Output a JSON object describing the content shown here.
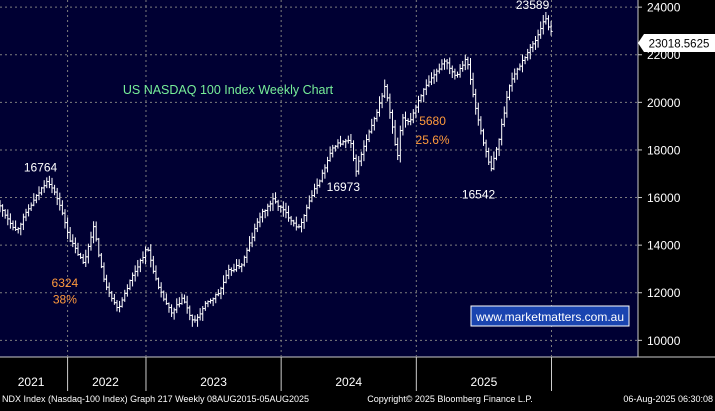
{
  "chart_data": {
    "type": "bar",
    "subtype": "ohlc-weekly",
    "title": "US NASDAQ 100 Index Weekly Chart",
    "watermark": "www.marketmatters.com.au",
    "footer": {
      "left": "NDX Index (Nasdaq-100 Index) Graph 217  Weekly 08AUG2015-05AUG2025",
      "center": "Copyright© 2025 Bloomberg Finance L.P.",
      "right": "06-Aug-2025 06:30:08"
    },
    "last_price": "23018.5625",
    "ylim": [
      9300,
      24300
    ],
    "grid": true,
    "y_ticks": [
      10000,
      12000,
      14000,
      16000,
      18000,
      20000,
      22000,
      24000
    ],
    "y_tick_labels": [
      "10000",
      "12000",
      "14000",
      "16000",
      "18000",
      "20000",
      "22000",
      "24000"
    ],
    "x_range": [
      2020.92,
      2025.64
    ],
    "year_dividers": [
      2021.42,
      2022.0,
      2023.0,
      2024.0,
      2025.0
    ],
    "year_labels": [
      {
        "label": "2021",
        "x": 2021.15
      },
      {
        "label": "2022",
        "x": 2021.7
      },
      {
        "label": "2023",
        "x": 2022.5
      },
      {
        "label": "2024",
        "x": 2023.5
      },
      {
        "label": "2025",
        "x": 2024.5
      }
    ],
    "anchor_points": [
      [
        2020.92,
        15700
      ],
      [
        2021.05,
        14600
      ],
      [
        2021.15,
        15600
      ],
      [
        2021.28,
        16764
      ],
      [
        2021.36,
        15900
      ],
      [
        2021.45,
        14200
      ],
      [
        2021.55,
        13200
      ],
      [
        2021.62,
        14800
      ],
      [
        2021.7,
        12500
      ],
      [
        2021.8,
        11300
      ],
      [
        2021.9,
        12600
      ],
      [
        2022.02,
        13900
      ],
      [
        2022.1,
        12200
      ],
      [
        2022.2,
        11100
      ],
      [
        2022.28,
        11800
      ],
      [
        2022.36,
        10700
      ],
      [
        2022.45,
        11500
      ],
      [
        2022.55,
        12000
      ],
      [
        2022.62,
        12900
      ],
      [
        2022.72,
        13200
      ],
      [
        2022.85,
        15200
      ],
      [
        2022.95,
        15900
      ],
      [
        2023.05,
        15300
      ],
      [
        2023.14,
        14700
      ],
      [
        2023.22,
        15900
      ],
      [
        2023.3,
        16800
      ],
      [
        2023.4,
        18200
      ],
      [
        2023.52,
        18400
      ],
      [
        2023.56,
        17100
      ],
      [
        2023.62,
        18100
      ],
      [
        2023.7,
        19300
      ],
      [
        2023.78,
        20700
      ],
      [
        2023.84,
        18700
      ],
      [
        2023.87,
        17600
      ],
      [
        2023.9,
        19300
      ],
      [
        2023.96,
        19200
      ],
      [
        2024.05,
        20400
      ],
      [
        2024.14,
        21100
      ],
      [
        2024.22,
        21800
      ],
      [
        2024.3,
        21100
      ],
      [
        2024.38,
        21900
      ],
      [
        2024.45,
        19700
      ],
      [
        2024.5,
        18500
      ],
      [
        2024.56,
        17100
      ],
      [
        2024.62,
        18400
      ],
      [
        2024.7,
        20800
      ],
      [
        2024.8,
        21800
      ],
      [
        2024.9,
        22700
      ],
      [
        2024.96,
        23589
      ],
      [
        2025.0,
        23000
      ]
    ],
    "annotations": [
      {
        "text": "16764",
        "x": 2021.22,
        "y": 17100,
        "color": "#ffffff"
      },
      {
        "text": "6324",
        "x": 2021.4,
        "y": 12250,
        "color": "#ff9a3c"
      },
      {
        "text": "38%",
        "x": 2021.4,
        "y": 11550,
        "color": "#ff9a3c"
      },
      {
        "text": "16973",
        "x": 2023.46,
        "y": 16280,
        "color": "#ffffff"
      },
      {
        "text": "5680",
        "x": 2024.12,
        "y": 19050,
        "color": "#ff9a3c"
      },
      {
        "text": "25.6%",
        "x": 2024.12,
        "y": 18250,
        "color": "#ff9a3c"
      },
      {
        "text": "16542",
        "x": 2024.46,
        "y": 15950,
        "color": "#ffffff"
      },
      {
        "text": "23589",
        "x": 2024.86,
        "y": 23920,
        "color": "#ffffff"
      }
    ],
    "colors": {
      "background": "#000033",
      "axis_bg": "#000000",
      "candles": "#ffffff",
      "grid": "#7d7d7d",
      "title": "#77ee99",
      "watermark_bg": "#1a44b0",
      "watermark_border": "#ffffff",
      "price_box": "#ffffff"
    }
  }
}
